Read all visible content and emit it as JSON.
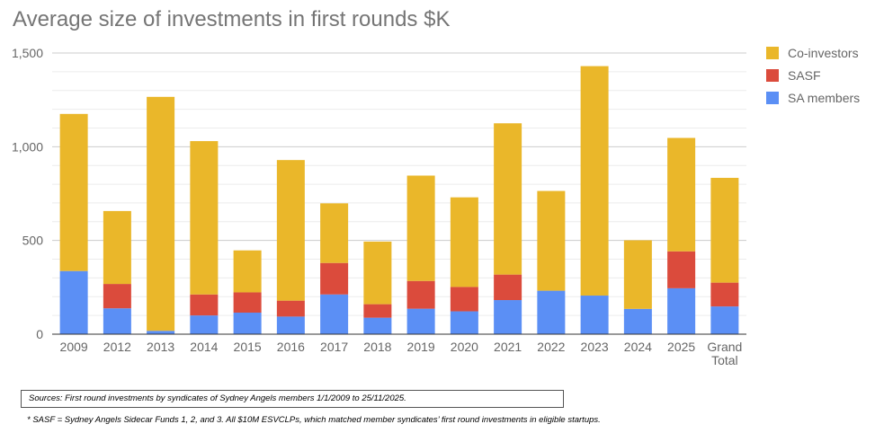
{
  "chart_data": {
    "type": "bar",
    "stacked": true,
    "title": "Average size of investments in first rounds $K",
    "xlabel": "",
    "ylabel": "",
    "categories": [
      "2009",
      "2012",
      "2013",
      "2014",
      "2015",
      "2016",
      "2017",
      "2018",
      "2019",
      "2020",
      "2021",
      "2022",
      "2023",
      "2024",
      "2025",
      "Grand Total"
    ],
    "series": [
      {
        "name": "SA members",
        "color": "#5b8ff5",
        "values": [
          337,
          138,
          18,
          100,
          115,
          94,
          212,
          88,
          136,
          122,
          182,
          232,
          206,
          135,
          245,
          148
        ]
      },
      {
        "name": "SASF",
        "color": "#db4b3c",
        "values": [
          0,
          130,
          0,
          112,
          108,
          85,
          168,
          72,
          148,
          130,
          136,
          0,
          0,
          0,
          197,
          127
        ]
      },
      {
        "name": "Co-investors",
        "color": "#eab72a",
        "values": [
          838,
          389,
          1248,
          818,
          224,
          750,
          318,
          334,
          562,
          478,
          807,
          532,
          1224,
          366,
          605,
          559
        ]
      }
    ],
    "ylim": [
      0,
      1500
    ],
    "yticks": [
      0,
      500,
      1000,
      1500
    ],
    "ytick_labels": [
      "0",
      "500",
      "1,000",
      "1,500"
    ],
    "grid": true,
    "legend_position": "right",
    "legend_order": [
      "Co-investors",
      "SASF",
      "SA members"
    ]
  },
  "notes": {
    "source": "Sources: First round investments by syndicates of Sydney Angels members 1/1/2009 to 25/11/2025.",
    "footnote": "* SASF = Sydney Angels Sidecar Funds 1, 2, and 3. All $10M ESVCLPs, which matched member syndicates’ first round investments in eligible startups."
  },
  "colors": {
    "title": "#757575",
    "axis_text": "#666666",
    "gridline": "#e0e0e0",
    "baseline": "#333333"
  }
}
